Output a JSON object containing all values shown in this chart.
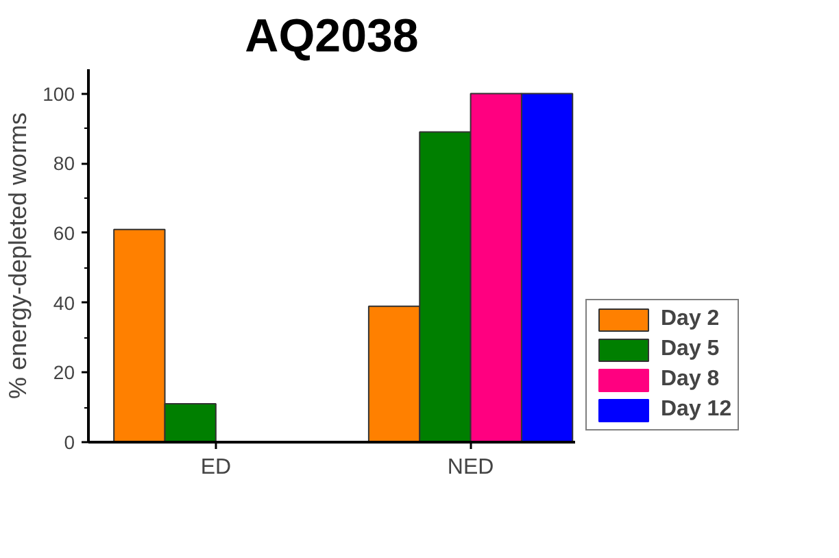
{
  "chart_data": {
    "type": "bar",
    "title": "AQ2038",
    "ylabel": "% energy-depleted worms",
    "categories": [
      "ED",
      "NED"
    ],
    "series": [
      {
        "name": "Day 2",
        "color": "#ff8000",
        "values": [
          61,
          39
        ]
      },
      {
        "name": "Day 5",
        "color": "#007f00",
        "values": [
          11,
          89
        ]
      },
      {
        "name": "Day 8",
        "color": "#ff0080",
        "values": [
          0,
          100
        ]
      },
      {
        "name": "Day 12",
        "color": "#0000ff",
        "values": [
          0,
          100
        ]
      }
    ],
    "ylim": [
      0,
      107
    ],
    "yticks": [
      0,
      20,
      40,
      60,
      80,
      100
    ],
    "grid": false,
    "legend": "right"
  }
}
